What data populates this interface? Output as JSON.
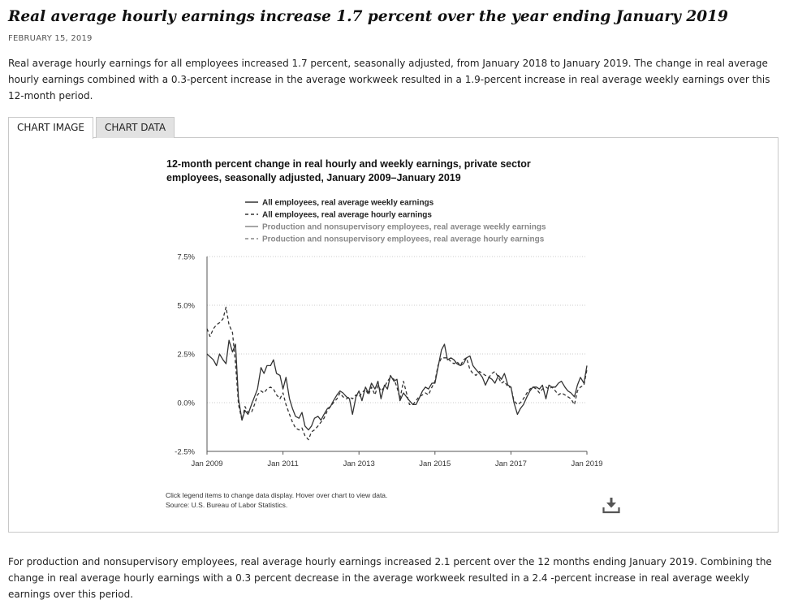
{
  "article": {
    "title": "Real average hourly earnings increase 1.7 percent over the year ending January 2019",
    "date": "FEBRUARY 15, 2019",
    "intro": "Real average hourly earnings for all employees increased 1.7 percent, seasonally adjusted, from January 2018 to January 2019. The change in real average hourly earnings combined with a 0.3-percent increase in the average workweek resulted in a 1.9-percent increase in real average weekly earnings over this 12-month period.",
    "outro": "For production and nonsupervisory employees, real average hourly earnings increased 2.1 percent over the 12 months ending January 2019. Combining the change in real average hourly earnings with a 0.3 percent decrease in the average workweek resulted in a 2.4 -percent increase in real average weekly earnings over this period."
  },
  "tabs": {
    "chart_image": "CHART IMAGE",
    "chart_data": "CHART DATA"
  },
  "colors": {
    "primary": "#333333",
    "secondary": "#999999",
    "grid": "#cccccc",
    "legend_inactive": "#888888"
  },
  "download_icon": "download-icon",
  "chart_data": {
    "type": "line",
    "title": "12-month percent change in real hourly and weekly earnings, private sector employees, seasonally adjusted, January 2009–January 2019",
    "title_lines": [
      "12-month percent change in real hourly and weekly earnings, private sector",
      "employees, seasonally adjusted, January 2009–January 2019"
    ],
    "xlabel": "",
    "ylabel": "",
    "ylim": [
      -2.5,
      7.5
    ],
    "xlim": [
      2009.0,
      2019.0
    ],
    "y_ticks": [
      -2.5,
      0.0,
      2.5,
      5.0,
      7.5
    ],
    "y_tick_labels": [
      "-2.5%",
      "0.0%",
      "2.5%",
      "5.0%",
      "7.5%"
    ],
    "x_ticks": [
      2009,
      2011,
      2013,
      2015,
      2017,
      2019
    ],
    "x_tick_labels": [
      "Jan 2009",
      "Jan 2011",
      "Jan 2013",
      "Jan 2015",
      "Jan 2017",
      "Jan 2019"
    ],
    "grid": "horizontal dotted",
    "legend_position": "top",
    "notes": [
      "Click legend items to change data display. Hover over chart to view data.",
      "Source: U.S. Bureau of Labor Statistics."
    ],
    "series": [
      {
        "name": "All employees, real average weekly earnings",
        "style": "solid",
        "color": "#333333",
        "visible": true,
        "points": [
          [
            2009.0,
            2.5
          ],
          [
            2009.167,
            2.2
          ],
          [
            2009.25,
            1.9
          ],
          [
            2009.33,
            2.5
          ],
          [
            2009.42,
            2.2
          ],
          [
            2009.5,
            2.0
          ],
          [
            2009.58,
            3.2
          ],
          [
            2009.67,
            2.6
          ],
          [
            2009.75,
            3.0
          ],
          [
            2009.83,
            0.2
          ],
          [
            2009.92,
            -0.9
          ],
          [
            2010.0,
            -0.4
          ],
          [
            2010.08,
            -0.6
          ],
          [
            2010.17,
            -0.1
          ],
          [
            2010.25,
            0.3
          ],
          [
            2010.33,
            0.7
          ],
          [
            2010.42,
            1.8
          ],
          [
            2010.5,
            1.5
          ],
          [
            2010.58,
            1.9
          ],
          [
            2010.67,
            1.9
          ],
          [
            2010.75,
            2.2
          ],
          [
            2010.83,
            1.5
          ],
          [
            2010.92,
            1.4
          ],
          [
            2011.0,
            0.7
          ],
          [
            2011.08,
            1.3
          ],
          [
            2011.17,
            0.2
          ],
          [
            2011.25,
            -0.3
          ],
          [
            2011.33,
            -0.7
          ],
          [
            2011.42,
            -0.8
          ],
          [
            2011.5,
            -0.5
          ],
          [
            2011.58,
            -1.2
          ],
          [
            2011.67,
            -1.4
          ],
          [
            2011.75,
            -1.2
          ],
          [
            2011.83,
            -0.8
          ],
          [
            2011.92,
            -0.7
          ],
          [
            2012.0,
            -0.9
          ],
          [
            2012.08,
            -0.6
          ],
          [
            2012.17,
            -0.3
          ],
          [
            2012.25,
            -0.2
          ],
          [
            2012.33,
            0.1
          ],
          [
            2012.42,
            0.4
          ],
          [
            2012.5,
            0.6
          ],
          [
            2012.58,
            0.5
          ],
          [
            2012.67,
            0.3
          ],
          [
            2012.75,
            0.2
          ],
          [
            2012.83,
            -0.6
          ],
          [
            2012.92,
            0.3
          ],
          [
            2013.0,
            0.6
          ],
          [
            2013.08,
            0.1
          ],
          [
            2013.17,
            0.8
          ],
          [
            2013.25,
            0.5
          ],
          [
            2013.33,
            1.0
          ],
          [
            2013.42,
            0.7
          ],
          [
            2013.5,
            1.1
          ],
          [
            2013.58,
            0.2
          ],
          [
            2013.67,
            0.9
          ],
          [
            2013.75,
            0.7
          ],
          [
            2013.83,
            1.4
          ],
          [
            2013.92,
            1.1
          ],
          [
            2014.0,
            1.2
          ],
          [
            2014.08,
            0.1
          ],
          [
            2014.17,
            0.5
          ],
          [
            2014.25,
            0.3
          ],
          [
            2014.33,
            0.1
          ],
          [
            2014.42,
            -0.1
          ],
          [
            2014.5,
            -0.1
          ],
          [
            2014.58,
            0.2
          ],
          [
            2014.67,
            0.6
          ],
          [
            2014.75,
            0.8
          ],
          [
            2014.83,
            0.7
          ],
          [
            2014.92,
            1.0
          ],
          [
            2015.0,
            1.0
          ],
          [
            2015.08,
            1.8
          ],
          [
            2015.17,
            2.7
          ],
          [
            2015.25,
            3.0
          ],
          [
            2015.33,
            2.2
          ],
          [
            2015.42,
            2.3
          ],
          [
            2015.5,
            2.2
          ],
          [
            2015.58,
            2.0
          ],
          [
            2015.67,
            1.9
          ],
          [
            2015.75,
            2.0
          ],
          [
            2015.83,
            2.3
          ],
          [
            2015.92,
            2.4
          ],
          [
            2016.0,
            1.9
          ],
          [
            2016.08,
            1.7
          ],
          [
            2016.17,
            1.5
          ],
          [
            2016.25,
            1.3
          ],
          [
            2016.33,
            0.9
          ],
          [
            2016.42,
            1.3
          ],
          [
            2016.5,
            1.2
          ],
          [
            2016.58,
            1.0
          ],
          [
            2016.67,
            1.4
          ],
          [
            2016.75,
            1.2
          ],
          [
            2016.83,
            1.5
          ],
          [
            2016.92,
            0.9
          ],
          [
            2017.0,
            0.8
          ],
          [
            2017.08,
            0.0
          ],
          [
            2017.17,
            -0.6
          ],
          [
            2017.25,
            -0.3
          ],
          [
            2017.33,
            -0.1
          ],
          [
            2017.42,
            0.3
          ],
          [
            2017.5,
            0.6
          ],
          [
            2017.58,
            0.8
          ],
          [
            2017.67,
            0.8
          ],
          [
            2017.75,
            0.7
          ],
          [
            2017.83,
            0.9
          ],
          [
            2017.92,
            0.2
          ],
          [
            2018.0,
            0.9
          ],
          [
            2018.08,
            0.8
          ],
          [
            2018.17,
            0.8
          ],
          [
            2018.25,
            1.0
          ],
          [
            2018.33,
            1.1
          ],
          [
            2018.42,
            0.8
          ],
          [
            2018.5,
            0.6
          ],
          [
            2018.58,
            0.5
          ],
          [
            2018.67,
            0.3
          ],
          [
            2018.75,
            0.9
          ],
          [
            2018.83,
            1.3
          ],
          [
            2018.92,
            1.0
          ],
          [
            2019.0,
            1.9
          ]
        ]
      },
      {
        "name": "All employees, real average hourly earnings",
        "style": "dashed",
        "color": "#333333",
        "visible": true,
        "points": [
          [
            2009.0,
            3.8
          ],
          [
            2009.08,
            3.4
          ],
          [
            2009.17,
            3.8
          ],
          [
            2009.25,
            4.0
          ],
          [
            2009.33,
            4.1
          ],
          [
            2009.42,
            4.3
          ],
          [
            2009.5,
            4.9
          ],
          [
            2009.58,
            4.0
          ],
          [
            2009.67,
            3.6
          ],
          [
            2009.75,
            2.0
          ],
          [
            2009.83,
            -0.1
          ],
          [
            2009.92,
            -0.9
          ],
          [
            2010.0,
            -0.2
          ],
          [
            2010.08,
            -0.5
          ],
          [
            2010.17,
            -0.5
          ],
          [
            2010.25,
            -0.1
          ],
          [
            2010.33,
            0.4
          ],
          [
            2010.42,
            0.6
          ],
          [
            2010.5,
            0.5
          ],
          [
            2010.58,
            0.7
          ],
          [
            2010.67,
            0.8
          ],
          [
            2010.75,
            0.7
          ],
          [
            2010.83,
            0.4
          ],
          [
            2010.92,
            0.2
          ],
          [
            2011.0,
            0.5
          ],
          [
            2011.08,
            -0.1
          ],
          [
            2011.17,
            -0.6
          ],
          [
            2011.25,
            -1.0
          ],
          [
            2011.33,
            -1.3
          ],
          [
            2011.42,
            -1.4
          ],
          [
            2011.5,
            -1.3
          ],
          [
            2011.58,
            -1.7
          ],
          [
            2011.67,
            -1.9
          ],
          [
            2011.75,
            -1.5
          ],
          [
            2011.83,
            -1.4
          ],
          [
            2011.92,
            -1.2
          ],
          [
            2012.0,
            -1.0
          ],
          [
            2012.08,
            -0.8
          ],
          [
            2012.17,
            -0.4
          ],
          [
            2012.25,
            -0.2
          ],
          [
            2012.33,
            0.0
          ],
          [
            2012.42,
            0.2
          ],
          [
            2012.5,
            0.5
          ],
          [
            2012.58,
            0.3
          ],
          [
            2012.67,
            0.2
          ],
          [
            2012.75,
            0.3
          ],
          [
            2012.83,
            0.2
          ],
          [
            2012.92,
            0.4
          ],
          [
            2013.0,
            0.3
          ],
          [
            2013.08,
            0.5
          ],
          [
            2013.17,
            0.7
          ],
          [
            2013.25,
            0.4
          ],
          [
            2013.33,
            0.8
          ],
          [
            2013.42,
            0.4
          ],
          [
            2013.5,
            0.9
          ],
          [
            2013.58,
            0.6
          ],
          [
            2013.67,
            0.8
          ],
          [
            2013.75,
            1.1
          ],
          [
            2013.83,
            1.3
          ],
          [
            2013.92,
            1.2
          ],
          [
            2014.0,
            0.8
          ],
          [
            2014.08,
            0.2
          ],
          [
            2014.17,
            1.1
          ],
          [
            2014.25,
            0.5
          ],
          [
            2014.33,
            -0.1
          ],
          [
            2014.42,
            -0.1
          ],
          [
            2014.5,
            0.1
          ],
          [
            2014.58,
            0.3
          ],
          [
            2014.67,
            0.4
          ],
          [
            2014.75,
            0.5
          ],
          [
            2014.83,
            0.4
          ],
          [
            2014.92,
            0.8
          ],
          [
            2015.0,
            1.1
          ],
          [
            2015.08,
            1.9
          ],
          [
            2015.17,
            2.3
          ],
          [
            2015.25,
            2.3
          ],
          [
            2015.33,
            2.3
          ],
          [
            2015.42,
            2.1
          ],
          [
            2015.5,
            2.0
          ],
          [
            2015.58,
            2.1
          ],
          [
            2015.67,
            1.9
          ],
          [
            2015.75,
            2.2
          ],
          [
            2015.83,
            2.3
          ],
          [
            2015.92,
            1.7
          ],
          [
            2016.0,
            1.5
          ],
          [
            2016.08,
            1.4
          ],
          [
            2016.17,
            1.6
          ],
          [
            2016.25,
            1.5
          ],
          [
            2016.33,
            1.4
          ],
          [
            2016.42,
            1.3
          ],
          [
            2016.5,
            1.5
          ],
          [
            2016.58,
            1.6
          ],
          [
            2016.67,
            1.3
          ],
          [
            2016.75,
            1.0
          ],
          [
            2016.83,
            1.1
          ],
          [
            2016.92,
            0.8
          ],
          [
            2017.0,
            0.8
          ],
          [
            2017.08,
            0.1
          ],
          [
            2017.17,
            -0.1
          ],
          [
            2017.25,
            0.0
          ],
          [
            2017.33,
            0.2
          ],
          [
            2017.42,
            0.5
          ],
          [
            2017.5,
            0.7
          ],
          [
            2017.58,
            0.8
          ],
          [
            2017.67,
            0.7
          ],
          [
            2017.75,
            0.5
          ],
          [
            2017.83,
            0.7
          ],
          [
            2017.92,
            0.8
          ],
          [
            2018.0,
            0.7
          ],
          [
            2018.08,
            0.8
          ],
          [
            2018.17,
            0.6
          ],
          [
            2018.25,
            0.4
          ],
          [
            2018.33,
            0.5
          ],
          [
            2018.42,
            0.4
          ],
          [
            2018.5,
            0.3
          ],
          [
            2018.58,
            0.2
          ],
          [
            2018.67,
            -0.1
          ],
          [
            2018.75,
            0.6
          ],
          [
            2018.83,
            0.8
          ],
          [
            2018.92,
            0.9
          ],
          [
            2019.0,
            1.7
          ]
        ]
      },
      {
        "name": "Production and nonsupervisory employees, real average weekly earnings",
        "style": "solid",
        "color": "#999999",
        "visible": false,
        "points": []
      },
      {
        "name": "Production and nonsupervisory employees, real average hourly earnings",
        "style": "dashed",
        "color": "#999999",
        "visible": false,
        "points": []
      }
    ]
  }
}
